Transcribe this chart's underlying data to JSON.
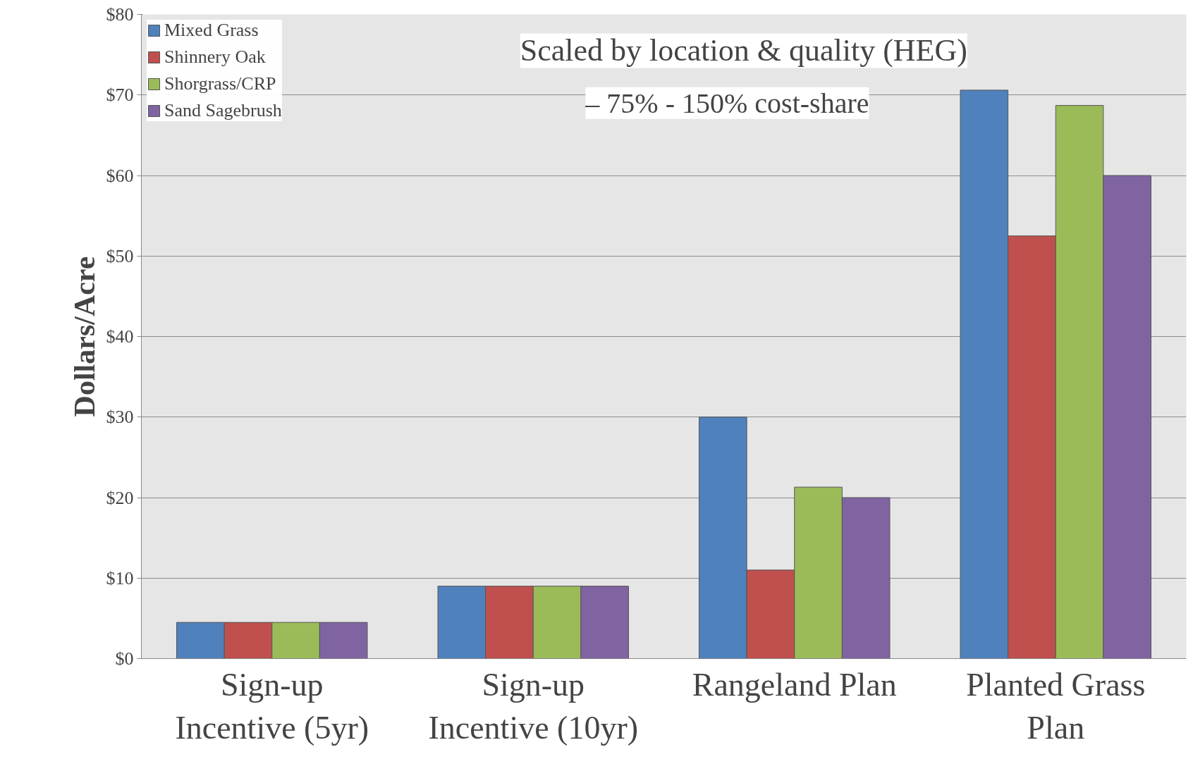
{
  "chart_data": {
    "type": "bar",
    "ylabel": "Dollars/Acre",
    "categories": [
      "Sign-up Incentive (5yr)",
      "Sign-up Incentive (10yr)",
      "Rangeland Plan",
      "Planted Grass Plan"
    ],
    "series": [
      {
        "name": "Mixed Grass",
        "color": "#4f81bd",
        "values": [
          4.5,
          9,
          30,
          70.6
        ]
      },
      {
        "name": "Shinnery Oak",
        "color": "#c0504d",
        "values": [
          4.5,
          9,
          11,
          52.5
        ]
      },
      {
        "name": "Shorgrass/CRP",
        "color": "#9bbb59",
        "values": [
          4.5,
          9,
          21.3,
          68.7
        ]
      },
      {
        "name": "Sand Sagebrush",
        "color": "#8064a2",
        "values": [
          4.5,
          9,
          20,
          60
        ]
      }
    ],
    "ylim": [
      0,
      80
    ],
    "yticks": [
      {
        "value": 0,
        "label": "$0"
      },
      {
        "value": 10,
        "label": "$10"
      },
      {
        "value": 20,
        "label": "$20"
      },
      {
        "value": 30,
        "label": "$30"
      },
      {
        "value": 40,
        "label": "$40"
      },
      {
        "value": 50,
        "label": "$50"
      },
      {
        "value": 60,
        "label": "$60"
      },
      {
        "value": 70,
        "label": "$70"
      },
      {
        "value": 80,
        "label": "$80"
      }
    ],
    "grid": "y",
    "legend": "top left",
    "annotations": [
      "Scaled by location & quality (HEG)",
      "– 75% - 150% cost-share"
    ]
  }
}
